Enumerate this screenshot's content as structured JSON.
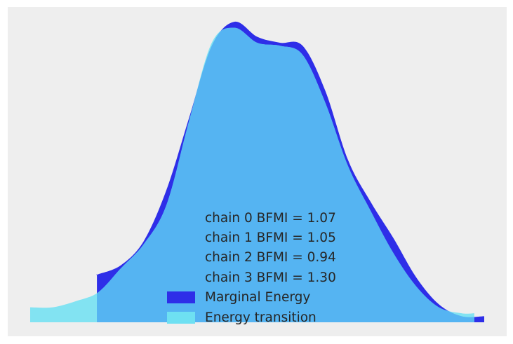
{
  "chart_data": {
    "type": "area",
    "title": "",
    "xlabel": "",
    "ylabel": "",
    "grid": false,
    "legend_placement": "bottom-center",
    "colors": {
      "background": "#eeeeee",
      "marginal_energy": "#2e2ee8",
      "energy_transition": "#6ee0f2",
      "overlap": "#55b4f2"
    },
    "x": [
      0.0,
      0.05,
      0.1,
      0.15,
      0.2,
      0.25,
      0.3,
      0.35,
      0.4,
      0.45,
      0.5,
      0.55,
      0.6,
      0.65,
      0.7,
      0.75,
      0.8,
      0.85,
      0.9,
      0.95,
      1.0
    ],
    "series": [
      {
        "name": "Marginal Energy",
        "x_range": [
          0.147,
          1.0
        ],
        "values": [
          0.0,
          0.0,
          0.0,
          0.16,
          0.19,
          0.27,
          0.44,
          0.68,
          0.92,
          1.0,
          0.95,
          0.93,
          0.92,
          0.77,
          0.54,
          0.4,
          0.28,
          0.15,
          0.06,
          0.02,
          0.02
        ]
      },
      {
        "name": "Energy transition",
        "x_range": [
          0.0,
          0.978
        ],
        "values": [
          0.05,
          0.05,
          0.07,
          0.1,
          0.18,
          0.26,
          0.39,
          0.67,
          0.93,
          0.98,
          0.93,
          0.92,
          0.89,
          0.73,
          0.52,
          0.37,
          0.23,
          0.12,
          0.05,
          0.03,
          0.03
        ]
      }
    ],
    "bfmi_labels": [
      "chain  0 BFMI = 1.07",
      "chain  1 BFMI = 1.05",
      "chain  2 BFMI = 0.94",
      "chain  3 BFMI = 1.30"
    ],
    "legend": [
      "Marginal Energy",
      "Energy transition"
    ]
  }
}
